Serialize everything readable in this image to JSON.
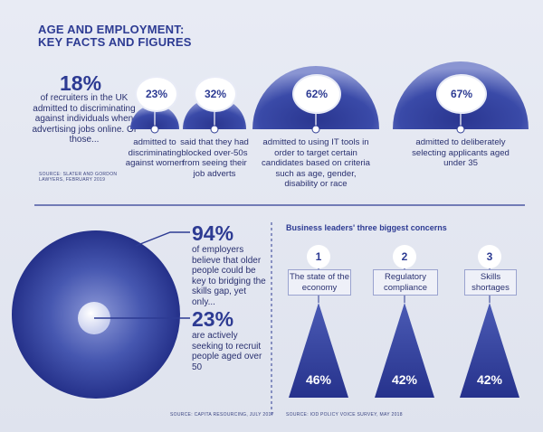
{
  "title_line1": "AGE AND EMPLOYMENT:",
  "title_line2": "KEY FACTS AND FIGURES",
  "intro": {
    "pct": "18%",
    "text": "of recruiters in the UK admitted to discriminating against individuals when advertising jobs online. Of those...",
    "source_line1": "SOURCE: SLATER AND GORDON",
    "source_line2": "LAWYERS, FEBRUARY 2019"
  },
  "facts": [
    {
      "pct": "23%",
      "caption": "admitted to discriminating against women"
    },
    {
      "pct": "32%",
      "caption": "said that they had blocked over-50s from seeing their job adverts"
    },
    {
      "pct": "62%",
      "caption": "admitted to using IT tools in order to target certain candidates based on criteria such as age, gender, disability or race"
    },
    {
      "pct": "67%",
      "caption": "admitted to deliberately selecting applicants aged under 35"
    }
  ],
  "skills": {
    "pct1": "94%",
    "text1": "of employers believe that older people could be key to bridging the skills gap, yet only...",
    "pct2": "23%",
    "text2": "are actively seeking to recruit people aged over 50",
    "source": "SOURCE: CAPITA RESOURCING, JULY 2017"
  },
  "concerns": {
    "title": "Business leaders' three biggest concerns",
    "items": [
      {
        "num": "1",
        "label": "The state of the economy",
        "pct": "46%"
      },
      {
        "num": "2",
        "label": "Regulatory compliance",
        "pct": "42%"
      },
      {
        "num": "3",
        "label": "Skills shortages",
        "pct": "42%"
      }
    ],
    "source": "SOURCE: IOD POLICY VOICE SURVEY, MAY 2018"
  },
  "colors": {
    "navy": "#2d3b93",
    "deep": "#1f2a78",
    "light": "#e3e6f0"
  }
}
